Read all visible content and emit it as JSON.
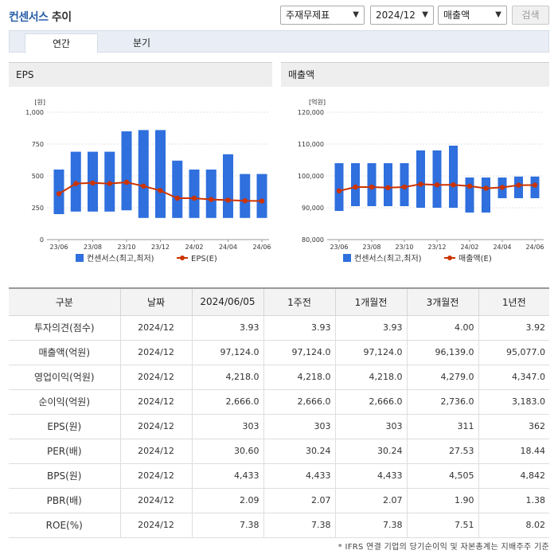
{
  "header": {
    "title_brand": "컨센서스",
    "title_suffix": " 추이",
    "select_type": "주재무제표",
    "select_period": "2024/12",
    "select_metric": "매출액",
    "search_label": "검색"
  },
  "tabs": [
    "연간",
    "분기"
  ],
  "colors": {
    "bar": "#2f6fde",
    "line": "#cc3300",
    "brand": "#2a5ea8"
  },
  "left_chart_title": "EPS",
  "right_chart_title": "매출액",
  "chart_data": [
    {
      "type": "bar",
      "unit_label": "[원]",
      "categories": [
        "23/06",
        "23/07",
        "23/08",
        "23/09",
        "23/10",
        "23/11",
        "23/12",
        "24/01",
        "24/02",
        "24/03",
        "24/04",
        "24/05",
        "24/06"
      ],
      "x_tick_labels": [
        "23/06",
        "23/08",
        "23/10",
        "23/12",
        "24/02",
        "24/04",
        "24/06"
      ],
      "ylim": [
        0,
        1000
      ],
      "y_ticks": [
        "0",
        "250",
        "500",
        "750",
        "1,000"
      ],
      "series": [
        {
          "name": "컨센서스(최고,최저)",
          "kind": "range",
          "low": [
            200,
            220,
            220,
            220,
            230,
            170,
            170,
            170,
            170,
            170,
            170,
            170,
            170
          ],
          "high": [
            550,
            690,
            690,
            690,
            850,
            860,
            860,
            620,
            550,
            550,
            670,
            515,
            515
          ]
        },
        {
          "name": "EPS(E)",
          "kind": "line",
          "values": [
            360,
            440,
            445,
            440,
            450,
            420,
            385,
            325,
            325,
            315,
            310,
            305,
            303
          ]
        }
      ]
    },
    {
      "type": "bar",
      "unit_label": "[억원]",
      "categories": [
        "23/06",
        "23/07",
        "23/08",
        "23/09",
        "23/10",
        "23/11",
        "23/12",
        "24/01",
        "24/02",
        "24/03",
        "24/04",
        "24/05",
        "24/06"
      ],
      "x_tick_labels": [
        "23/06",
        "23/08",
        "23/10",
        "23/12",
        "24/02",
        "24/04",
        "24/06"
      ],
      "ylim": [
        80000,
        120000
      ],
      "y_ticks": [
        "80,000",
        "90,000",
        "100,000",
        "110,000",
        "120,000"
      ],
      "series": [
        {
          "name": "컨센서스(최고,최저)",
          "kind": "range",
          "low": [
            89000,
            90500,
            90500,
            90500,
            90500,
            90000,
            90000,
            90000,
            88500,
            88500,
            93000,
            93000,
            93000
          ],
          "high": [
            104000,
            104000,
            104000,
            104000,
            104000,
            108000,
            108000,
            109500,
            99500,
            99500,
            99500,
            99800,
            99800
          ]
        },
        {
          "name": "매출액(E)",
          "kind": "line",
          "values": [
            95300,
            96500,
            96500,
            96300,
            96500,
            97400,
            97200,
            97200,
            96800,
            96100,
            96400,
            97100,
            97124
          ]
        }
      ]
    }
  ],
  "table": {
    "headers": [
      "구분",
      "날짜",
      "2024/06/05",
      "1주전",
      "1개월전",
      "3개월전",
      "1년전"
    ],
    "rows": [
      [
        "투자의견(점수)",
        "2024/12",
        "3.93",
        "3.93",
        "3.93",
        "4.00",
        "3.92"
      ],
      [
        "매출액(억원)",
        "2024/12",
        "97,124.0",
        "97,124.0",
        "97,124.0",
        "96,139.0",
        "95,077.0"
      ],
      [
        "영업이익(억원)",
        "2024/12",
        "4,218.0",
        "4,218.0",
        "4,218.0",
        "4,279.0",
        "4,347.0"
      ],
      [
        "순이익(억원)",
        "2024/12",
        "2,666.0",
        "2,666.0",
        "2,666.0",
        "2,736.0",
        "3,183.0"
      ],
      [
        "EPS(원)",
        "2024/12",
        "303",
        "303",
        "303",
        "311",
        "362"
      ],
      [
        "PER(배)",
        "2024/12",
        "30.60",
        "30.24",
        "30.24",
        "27.53",
        "18.44"
      ],
      [
        "BPS(원)",
        "2024/12",
        "4,433",
        "4,433",
        "4,433",
        "4,505",
        "4,842"
      ],
      [
        "PBR(배)",
        "2024/12",
        "2.09",
        "2.07",
        "2.07",
        "1.90",
        "1.38"
      ],
      [
        "ROE(%)",
        "2024/12",
        "7.38",
        "7.38",
        "7.38",
        "7.51",
        "8.02"
      ]
    ]
  },
  "footnote": "* IFRS 연결 기업의 당기순이익 및 자본총계는 지배주주 기준"
}
